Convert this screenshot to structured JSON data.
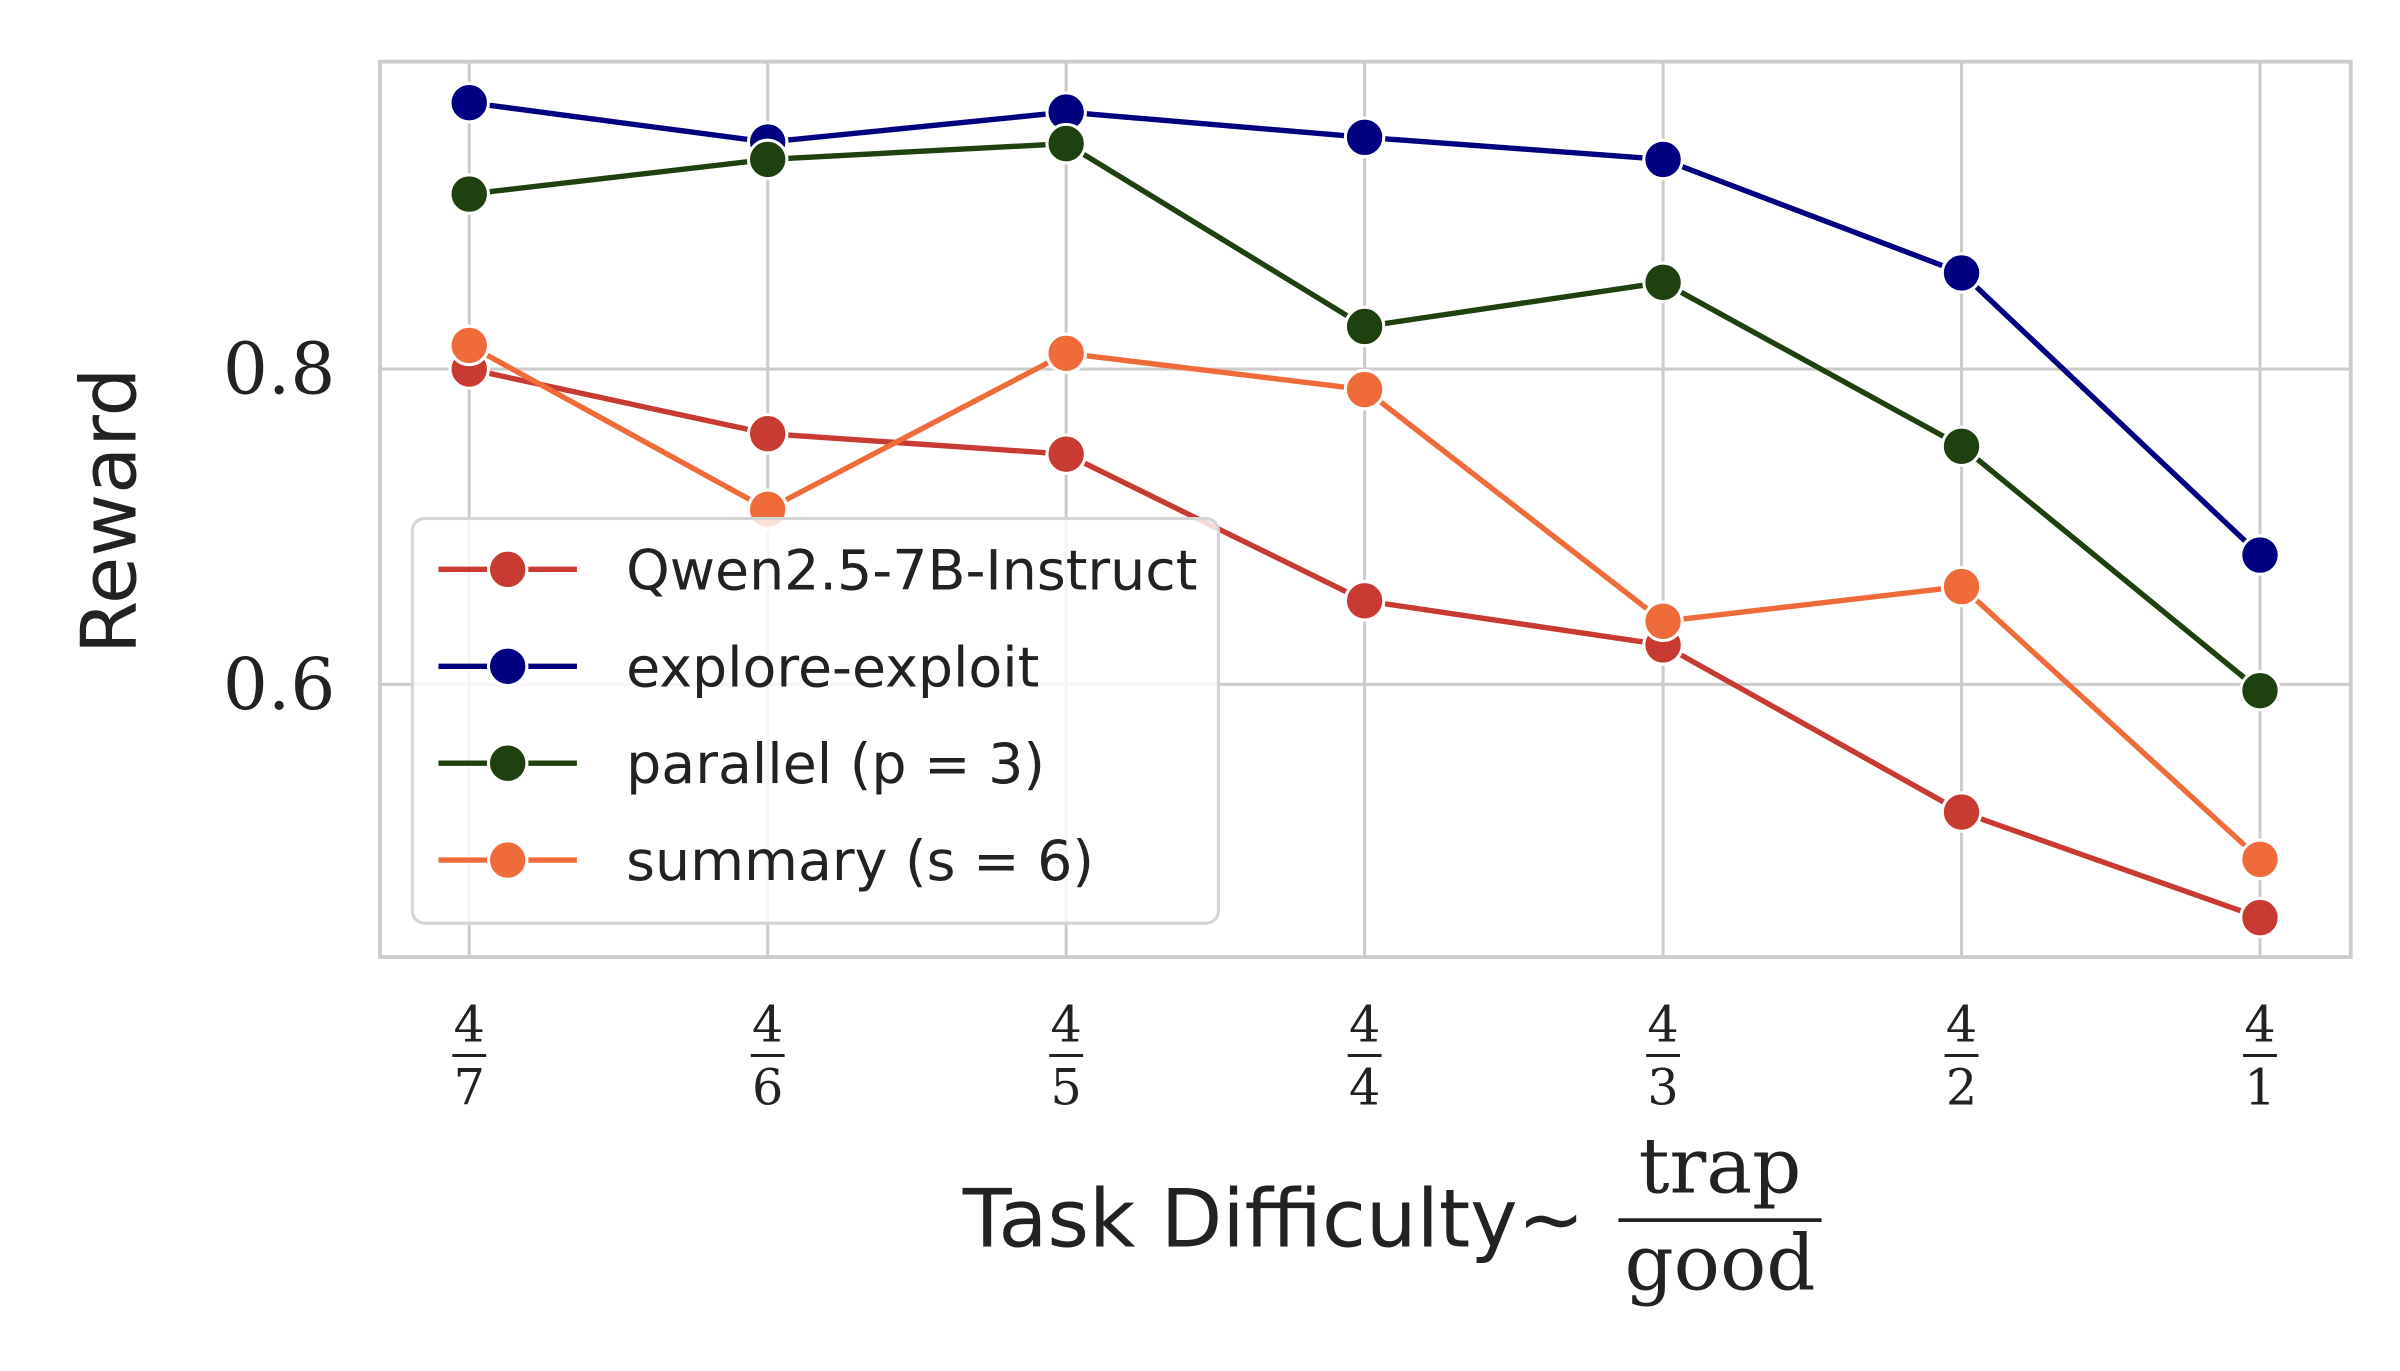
{
  "chart_data": {
    "type": "line",
    "xlabel": "Task Difficulty∼",
    "xlabel_fraction": {
      "numerator": "trap",
      "denominator": "good"
    },
    "ylabel": "Reward",
    "categories": [
      {
        "num": "4",
        "den": "7"
      },
      {
        "num": "4",
        "den": "6"
      },
      {
        "num": "4",
        "den": "5"
      },
      {
        "num": "4",
        "den": "4"
      },
      {
        "num": "4",
        "den": "3"
      },
      {
        "num": "4",
        "den": "2"
      },
      {
        "num": "4",
        "den": "1"
      }
    ],
    "yticks": [
      0.6,
      0.8
    ],
    "ytick_labels": [
      "0.6",
      "0.8"
    ],
    "ylim": [
      0.427,
      0.995
    ],
    "grid": true,
    "legend_position": "lower-left",
    "series": [
      {
        "name": "Qwen2.5-7B-Instruct",
        "color": "#c83a32",
        "values": [
          0.8,
          0.759,
          0.746,
          0.653,
          0.625,
          0.519,
          0.452
        ]
      },
      {
        "name": "explore-exploit",
        "color": "#000080",
        "values": [
          0.969,
          0.944,
          0.963,
          0.947,
          0.933,
          0.861,
          0.682
        ]
      },
      {
        "name": "parallel (p = 3)",
        "color": "#1f400f",
        "values": [
          0.911,
          0.933,
          0.943,
          0.827,
          0.855,
          0.751,
          0.596
        ]
      },
      {
        "name": "summary (s = 6)",
        "color": "#ef6c3a",
        "values": [
          0.815,
          0.711,
          0.81,
          0.787,
          0.64,
          0.662,
          0.489
        ]
      }
    ]
  }
}
